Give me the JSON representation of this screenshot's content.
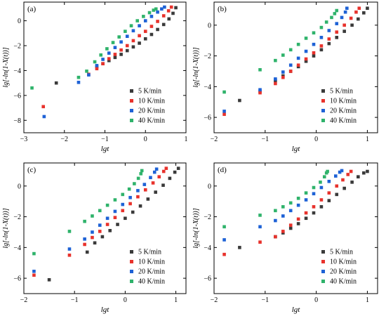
{
  "series_names": [
    "5 K/min",
    "10 K/min",
    "20 K/min",
    "40 K/min"
  ],
  "series_colors": [
    "#3a3a3a",
    "#e8322c",
    "#1e62d6",
    "#2fb36b"
  ],
  "chart_data": [
    {
      "type": "scatter",
      "panel_label": "(a)",
      "xlabel": "lgt",
      "ylabel": "lg[-ln(1-X(t))]",
      "xlim": [
        -3,
        1
      ],
      "ylim": [
        -9,
        1.5
      ],
      "xticks": [
        -3,
        -2,
        -1,
        0,
        1
      ],
      "yticks": [
        -8,
        -6,
        -4,
        -2,
        0
      ],
      "legend_position": "bottom-right",
      "series": [
        {
          "name": "5 K/min",
          "points": [
            [
              -2.2,
              -5.0
            ],
            [
              -1.2,
              -3.7
            ],
            [
              -1.05,
              -3.45
            ],
            [
              -0.9,
              -3.2
            ],
            [
              -0.75,
              -2.95
            ],
            [
              -0.6,
              -2.7
            ],
            [
              -0.45,
              -2.4
            ],
            [
              -0.3,
              -2.1
            ],
            [
              -0.15,
              -1.8
            ],
            [
              0.0,
              -1.45
            ],
            [
              0.15,
              -1.1
            ],
            [
              0.3,
              -0.7
            ],
            [
              0.45,
              -0.3
            ],
            [
              0.58,
              0.15
            ],
            [
              0.68,
              0.6
            ],
            [
              0.75,
              1.05
            ]
          ]
        },
        {
          "name": "10 K/min",
          "points": [
            [
              -2.52,
              -6.9
            ],
            [
              -1.4,
              -4.3
            ],
            [
              -1.2,
              -3.85
            ],
            [
              -1.05,
              -3.45
            ],
            [
              -0.9,
              -3.05
            ],
            [
              -0.75,
              -2.7
            ],
            [
              -0.6,
              -2.35
            ],
            [
              -0.45,
              -2.0
            ],
            [
              -0.3,
              -1.6
            ],
            [
              -0.15,
              -1.2
            ],
            [
              0.0,
              -0.85
            ],
            [
              0.15,
              -0.45
            ],
            [
              0.3,
              -0.05
            ],
            [
              0.45,
              0.4
            ],
            [
              0.57,
              0.8
            ],
            [
              0.64,
              1.1
            ]
          ]
        },
        {
          "name": "20 K/min",
          "points": [
            [
              -2.5,
              -7.7
            ],
            [
              -1.65,
              -4.95
            ],
            [
              -1.4,
              -4.35
            ],
            [
              -1.2,
              -3.6
            ],
            [
              -1.05,
              -3.1
            ],
            [
              -0.9,
              -2.6
            ],
            [
              -0.75,
              -2.15
            ],
            [
              -0.6,
              -1.7
            ],
            [
              -0.45,
              -1.25
            ],
            [
              -0.3,
              -0.8
            ],
            [
              -0.15,
              -0.4
            ],
            [
              0.0,
              0.0
            ],
            [
              0.15,
              0.35
            ],
            [
              0.3,
              0.7
            ],
            [
              0.4,
              0.95
            ],
            [
              0.47,
              1.1
            ]
          ]
        },
        {
          "name": "40 K/min",
          "points": [
            [
              -2.8,
              -5.4
            ],
            [
              -1.65,
              -4.55
            ],
            [
              -1.45,
              -4.05
            ],
            [
              -1.25,
              -3.3
            ],
            [
              -1.1,
              -2.75
            ],
            [
              -0.95,
              -2.25
            ],
            [
              -0.8,
              -1.75
            ],
            [
              -0.65,
              -1.3
            ],
            [
              -0.5,
              -0.85
            ],
            [
              -0.35,
              -0.4
            ],
            [
              -0.2,
              0.0
            ],
            [
              -0.05,
              0.35
            ],
            [
              0.1,
              0.65
            ],
            [
              0.2,
              0.85
            ],
            [
              0.26,
              0.95
            ]
          ]
        }
      ]
    },
    {
      "type": "scatter",
      "panel_label": "(b)",
      "xlabel": "lgt",
      "ylabel": "lg[-ln(1-X(t))]",
      "xlim": [
        -2,
        1.2
      ],
      "ylim": [
        -7,
        1.5
      ],
      "xticks": [
        -2,
        -1,
        0,
        1
      ],
      "yticks": [
        -6,
        -4,
        -2,
        0
      ],
      "legend_position": "bottom-right",
      "series": [
        {
          "name": "5 K/min",
          "points": [
            [
              -1.5,
              -4.9
            ],
            [
              -1.1,
              -4.3
            ],
            [
              -0.8,
              -3.6
            ],
            [
              -0.65,
              -3.3
            ],
            [
              -0.5,
              -3.0
            ],
            [
              -0.35,
              -2.7
            ],
            [
              -0.2,
              -2.35
            ],
            [
              -0.05,
              -2.0
            ],
            [
              0.1,
              -1.6
            ],
            [
              0.25,
              -1.2
            ],
            [
              0.4,
              -0.8
            ],
            [
              0.55,
              -0.4
            ],
            [
              0.7,
              0.0
            ],
            [
              0.82,
              0.4
            ],
            [
              0.93,
              0.8
            ],
            [
              1.0,
              1.1
            ]
          ]
        },
        {
          "name": "10 K/min",
          "points": [
            [
              -1.8,
              -5.8
            ],
            [
              -1.1,
              -4.4
            ],
            [
              -0.8,
              -3.8
            ],
            [
              -0.65,
              -3.4
            ],
            [
              -0.5,
              -3.0
            ],
            [
              -0.35,
              -2.6
            ],
            [
              -0.2,
              -2.2
            ],
            [
              -0.05,
              -1.8
            ],
            [
              0.1,
              -1.35
            ],
            [
              0.25,
              -0.9
            ],
            [
              0.4,
              -0.45
            ],
            [
              0.55,
              0.0
            ],
            [
              0.68,
              0.45
            ],
            [
              0.78,
              0.85
            ],
            [
              0.84,
              1.1
            ]
          ]
        },
        {
          "name": "20 K/min",
          "points": [
            [
              -1.8,
              -5.6
            ],
            [
              -1.1,
              -4.2
            ],
            [
              -0.8,
              -3.5
            ],
            [
              -0.65,
              -3.05
            ],
            [
              -0.5,
              -2.6
            ],
            [
              -0.35,
              -2.15
            ],
            [
              -0.2,
              -1.7
            ],
            [
              -0.05,
              -1.25
            ],
            [
              0.1,
              -0.8
            ],
            [
              0.25,
              -0.35
            ],
            [
              0.4,
              0.1
            ],
            [
              0.5,
              0.5
            ],
            [
              0.57,
              0.85
            ],
            [
              0.6,
              1.1
            ]
          ]
        },
        {
          "name": "40 K/min",
          "points": [
            [
              -1.8,
              -4.35
            ],
            [
              -1.1,
              -2.9
            ],
            [
              -0.8,
              -2.3
            ],
            [
              -0.65,
              -1.95
            ],
            [
              -0.5,
              -1.6
            ],
            [
              -0.35,
              -1.25
            ],
            [
              -0.2,
              -0.85
            ],
            [
              -0.05,
              -0.5
            ],
            [
              0.1,
              -0.15
            ],
            [
              0.2,
              0.2
            ],
            [
              0.3,
              0.5
            ],
            [
              0.36,
              0.75
            ],
            [
              0.4,
              0.95
            ]
          ]
        }
      ]
    },
    {
      "type": "scatter",
      "panel_label": "(c)",
      "xlabel": "lgt",
      "ylabel": "lg[-ln(1-X(t))]",
      "xlim": [
        -2,
        1.2
      ],
      "ylim": [
        -7,
        1.5
      ],
      "xticks": [
        -2,
        -1,
        0,
        1
      ],
      "yticks": [
        -6,
        -4,
        -2,
        0
      ],
      "legend_position": "bottom-right",
      "series": [
        {
          "name": "5 K/min",
          "points": [
            [
              -1.5,
              -6.1
            ],
            [
              -0.75,
              -4.3
            ],
            [
              -0.6,
              -3.7
            ],
            [
              -0.45,
              -3.3
            ],
            [
              -0.3,
              -2.9
            ],
            [
              -0.15,
              -2.5
            ],
            [
              0.0,
              -2.1
            ],
            [
              0.15,
              -1.7
            ],
            [
              0.3,
              -1.3
            ],
            [
              0.45,
              -0.85
            ],
            [
              0.6,
              -0.4
            ],
            [
              0.75,
              0.05
            ],
            [
              0.88,
              0.5
            ],
            [
              0.98,
              0.9
            ],
            [
              1.05,
              1.15
            ]
          ]
        },
        {
          "name": "10 K/min",
          "points": [
            [
              -1.8,
              -5.8
            ],
            [
              -1.1,
              -4.5
            ],
            [
              -0.8,
              -3.8
            ],
            [
              -0.65,
              -3.35
            ],
            [
              -0.5,
              -2.95
            ],
            [
              -0.35,
              -2.5
            ],
            [
              -0.2,
              -2.05
            ],
            [
              -0.05,
              -1.6
            ],
            [
              0.1,
              -1.15
            ],
            [
              0.25,
              -0.7
            ],
            [
              0.4,
              -0.25
            ],
            [
              0.55,
              0.2
            ],
            [
              0.67,
              0.6
            ],
            [
              0.76,
              0.95
            ],
            [
              0.81,
              1.15
            ]
          ]
        },
        {
          "name": "20 K/min",
          "points": [
            [
              -1.8,
              -5.55
            ],
            [
              -1.1,
              -4.1
            ],
            [
              -0.8,
              -3.45
            ],
            [
              -0.65,
              -3.0
            ],
            [
              -0.5,
              -2.55
            ],
            [
              -0.35,
              -2.1
            ],
            [
              -0.2,
              -1.65
            ],
            [
              -0.05,
              -1.2
            ],
            [
              0.1,
              -0.75
            ],
            [
              0.25,
              -0.3
            ],
            [
              0.38,
              0.1
            ],
            [
              0.5,
              0.55
            ],
            [
              0.58,
              0.9
            ],
            [
              0.62,
              1.1
            ]
          ]
        },
        {
          "name": "40 K/min",
          "points": [
            [
              -1.8,
              -4.4
            ],
            [
              -1.1,
              -2.95
            ],
            [
              -0.8,
              -2.3
            ],
            [
              -0.65,
              -1.95
            ],
            [
              -0.5,
              -1.6
            ],
            [
              -0.35,
              -1.25
            ],
            [
              -0.2,
              -0.9
            ],
            [
              -0.05,
              -0.55
            ],
            [
              0.08,
              -0.2
            ],
            [
              0.18,
              0.15
            ],
            [
              0.26,
              0.5
            ],
            [
              0.31,
              0.8
            ],
            [
              0.33,
              1.0
            ]
          ]
        }
      ]
    },
    {
      "type": "scatter",
      "panel_label": "(d)",
      "xlabel": "lgt",
      "ylabel": "lg[-ln(1-X(t))]",
      "xlim": [
        -2,
        1.2
      ],
      "ylim": [
        -7,
        1.5
      ],
      "xticks": [
        -2,
        -1,
        0,
        1
      ],
      "yticks": [
        -6,
        -4,
        -2,
        0
      ],
      "legend_position": "bottom-right",
      "series": [
        {
          "name": "5 K/min",
          "points": [
            [
              -1.5,
              -4.0
            ],
            [
              -0.8,
              -3.3
            ],
            [
              -0.65,
              -3.05
            ],
            [
              -0.5,
              -2.75
            ],
            [
              -0.35,
              -2.45
            ],
            [
              -0.2,
              -2.1
            ],
            [
              -0.05,
              -1.75
            ],
            [
              0.1,
              -1.35
            ],
            [
              0.25,
              -0.95
            ],
            [
              0.4,
              -0.55
            ],
            [
              0.55,
              -0.15
            ],
            [
              0.7,
              0.25
            ],
            [
              0.82,
              0.6
            ],
            [
              0.93,
              0.85
            ],
            [
              1.0,
              0.95
            ]
          ]
        },
        {
          "name": "10 K/min",
          "points": [
            [
              -1.8,
              -4.45
            ],
            [
              -1.1,
              -3.65
            ],
            [
              -0.8,
              -3.3
            ],
            [
              -0.65,
              -2.95
            ],
            [
              -0.5,
              -2.55
            ],
            [
              -0.35,
              -2.15
            ],
            [
              -0.2,
              -1.75
            ],
            [
              -0.05,
              -1.35
            ],
            [
              0.1,
              -0.9
            ],
            [
              0.25,
              -0.45
            ],
            [
              0.4,
              0.0
            ],
            [
              0.52,
              0.4
            ],
            [
              0.62,
              0.75
            ],
            [
              0.68,
              0.95
            ]
          ]
        },
        {
          "name": "20 K/min",
          "points": [
            [
              -1.8,
              -3.5
            ],
            [
              -1.1,
              -2.65
            ],
            [
              -0.8,
              -2.25
            ],
            [
              -0.65,
              -1.95
            ],
            [
              -0.5,
              -1.6
            ],
            [
              -0.35,
              -1.25
            ],
            [
              -0.2,
              -0.9
            ],
            [
              -0.05,
              -0.5
            ],
            [
              0.1,
              -0.1
            ],
            [
              0.25,
              0.3
            ],
            [
              0.38,
              0.65
            ],
            [
              0.46,
              0.9
            ],
            [
              0.5,
              1.0
            ]
          ]
        },
        {
          "name": "40 K/min",
          "points": [
            [
              -1.8,
              -2.65
            ],
            [
              -1.1,
              -1.9
            ],
            [
              -0.8,
              -1.6
            ],
            [
              -0.65,
              -1.35
            ],
            [
              -0.5,
              -1.1
            ],
            [
              -0.35,
              -0.8
            ],
            [
              -0.2,
              -0.45
            ],
            [
              -0.05,
              -0.1
            ],
            [
              0.08,
              0.25
            ],
            [
              0.16,
              0.6
            ],
            [
              0.2,
              0.85
            ],
            [
              0.22,
              0.95
            ]
          ]
        }
      ]
    }
  ]
}
